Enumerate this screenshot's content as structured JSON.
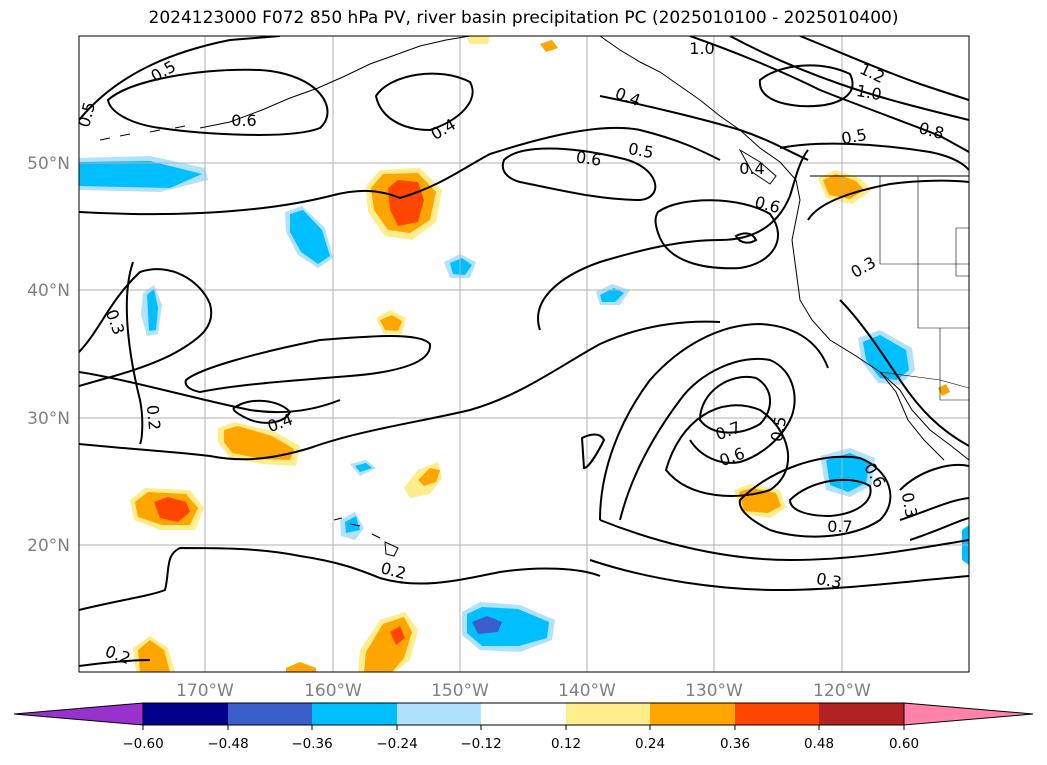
{
  "title": "2024123000 F072 850 hPa PV, river basin precipitation PC (2025010100 - 2025010400)",
  "lat_labels": [
    "50°N",
    "40°N",
    "30°N",
    "20°N"
  ],
  "lon_labels": [
    "170°W",
    "160°W",
    "150°W",
    "140°W",
    "130°W",
    "120°W"
  ],
  "colorbar": {
    "colors": [
      "#9932cc",
      "#00008b",
      "#3a5fcd",
      "#00bfff",
      "#b0e2ff",
      "#ffffff",
      "#ffec8b",
      "#ffa500",
      "#ff4500",
      "#b22222",
      "#ff82ab"
    ],
    "tick_labels": [
      "−0.60",
      "−0.48",
      "−0.36",
      "−0.24",
      "−0.12",
      "0.12",
      "0.24",
      "0.36",
      "0.48",
      "0.60"
    ]
  },
  "contour_labels": [
    "0.5",
    "0.5",
    "0.6",
    "0.4",
    "0.4",
    "1.0",
    "1.2",
    "1.0",
    "0.8",
    "0.5",
    "0.6",
    "0.5",
    "0.4",
    "0.6",
    "0.3",
    "0.3",
    "0.2",
    "0.4",
    "0.7",
    "0.6",
    "0.5",
    "0.6",
    "0.3",
    "0.7",
    "0.2",
    "0.3",
    "0.2"
  ]
}
